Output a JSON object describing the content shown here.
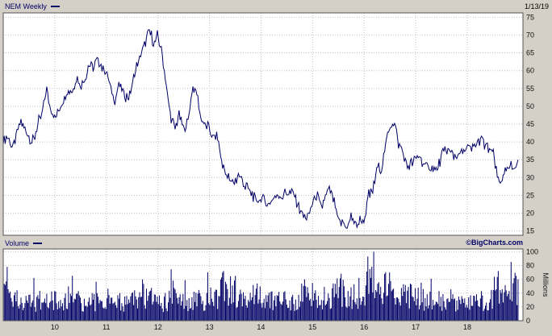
{
  "header": {
    "symbol_label": "NEM Weekly",
    "date": "1/13/19"
  },
  "volume_header": {
    "label": "Volume",
    "brand": "©BigCharts.com"
  },
  "colors": {
    "accent": "#000066",
    "background": "#d4d0c8",
    "plot_background": "#ffffff",
    "grid": "#c0c0c0",
    "border": "#555555",
    "text": "#111111"
  },
  "chart_data": [
    {
      "type": "line",
      "title": "NEM Weekly",
      "legend": "NEM Weekly",
      "axis_side": "right",
      "grid": true,
      "xlim": [
        2009.0,
        2019.08
      ],
      "x_start": 2009.0,
      "x_interval": "monthly",
      "values": [
        40,
        42,
        38,
        41,
        46,
        44,
        41,
        40,
        45,
        48,
        55,
        50,
        47,
        49,
        52,
        55,
        54,
        58,
        56,
        58,
        62,
        61,
        63,
        61,
        60,
        55,
        52,
        56,
        54,
        52,
        56,
        61,
        64,
        67,
        72,
        67,
        70,
        64,
        55,
        47,
        44,
        48,
        43,
        46,
        55,
        54,
        46,
        45,
        44,
        41,
        41,
        33,
        31,
        28,
        29,
        31,
        28,
        27,
        25,
        23,
        24,
        23,
        23,
        24,
        25,
        25,
        26,
        26,
        24,
        21,
        19,
        19,
        23,
        25,
        21,
        25,
        27,
        23,
        18,
        17,
        16,
        19,
        17,
        18,
        18,
        25,
        26,
        33,
        32,
        39,
        44,
        46,
        39,
        37,
        33,
        34,
        35,
        36,
        33,
        33,
        33,
        32,
        36,
        38,
        37,
        36,
        36,
        37,
        39,
        38,
        39,
        41,
        39,
        38,
        37,
        30,
        29,
        32,
        33,
        33,
        34
      ],
      "ylim": [
        15,
        75
      ],
      "yticks": [
        15,
        20,
        25,
        30,
        35,
        40,
        45,
        50,
        55,
        60,
        65,
        70,
        75
      ],
      "xticks": {
        "labels": [
          "10",
          "11",
          "12",
          "13",
          "14",
          "15",
          "16",
          "17",
          "18"
        ],
        "years": [
          2010,
          2011,
          2012,
          2013,
          2014,
          2015,
          2016,
          2017,
          2018
        ]
      }
    },
    {
      "type": "bar",
      "title": "Volume",
      "ylabel": "Millions",
      "xlim": [
        2009.0,
        2019.08
      ],
      "x_start": 2009.0,
      "x_interval": "monthly",
      "values": [
        45,
        38,
        33,
        30,
        34,
        30,
        26,
        24,
        28,
        30,
        36,
        28,
        30,
        28,
        33,
        36,
        40,
        32,
        28,
        25,
        30,
        28,
        30,
        26,
        28,
        26,
        25,
        30,
        28,
        25,
        27,
        36,
        38,
        36,
        34,
        30,
        30,
        26,
        28,
        32,
        36,
        30,
        28,
        26,
        30,
        28,
        32,
        30,
        32,
        36,
        30,
        55,
        45,
        48,
        40,
        35,
        32,
        30,
        35,
        38,
        35,
        30,
        28,
        30,
        28,
        32,
        30,
        28,
        32,
        38,
        44,
        36,
        38,
        35,
        32,
        35,
        30,
        35,
        48,
        40,
        38,
        35,
        38,
        36,
        46,
        60,
        50,
        48,
        45,
        50,
        45,
        42,
        40,
        38,
        42,
        38,
        35,
        32,
        30,
        28,
        30,
        32,
        30,
        28,
        26,
        28,
        30,
        28,
        32,
        30,
        28,
        30,
        28,
        30,
        32,
        45,
        40,
        38,
        42,
        48,
        42
      ],
      "spikes": [
        [
          2009.08,
          78
        ],
        [
          2009.6,
          62
        ],
        [
          2010.35,
          65
        ],
        [
          2011.7,
          60
        ],
        [
          2012.3,
          58
        ],
        [
          2013.28,
          72
        ],
        [
          2013.5,
          65
        ],
        [
          2014.85,
          60
        ],
        [
          2015.55,
          68
        ],
        [
          2015.9,
          62
        ],
        [
          2016.08,
          93
        ],
        [
          2016.5,
          70
        ],
        [
          2017.1,
          55
        ],
        [
          2018.6,
          72
        ],
        [
          2018.95,
          65
        ]
      ],
      "ylim": [
        0,
        100
      ],
      "yticks": [
        0,
        20,
        40,
        60,
        80,
        100
      ]
    }
  ]
}
